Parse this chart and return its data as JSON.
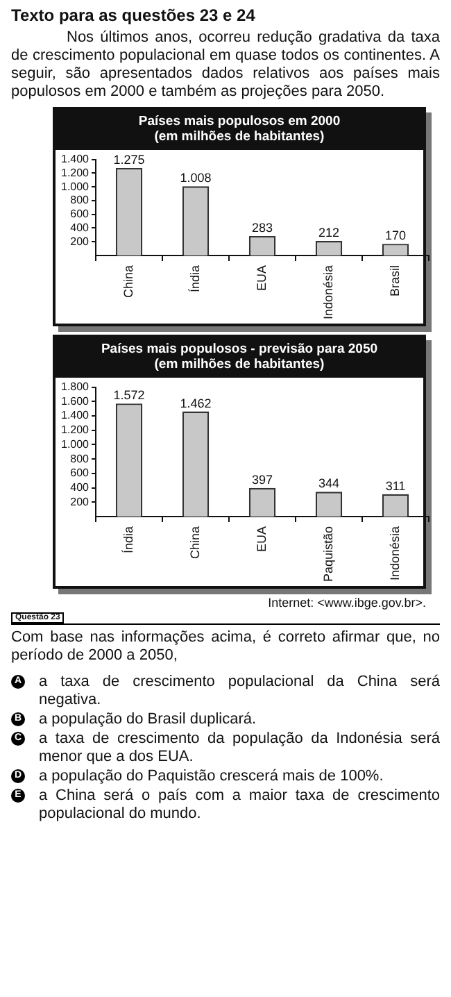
{
  "chart_data": [
    {
      "type": "bar",
      "title": "Países mais populosos em 2000",
      "subtitle": "(em milhões de habitantes)",
      "annotations": [
        "Texto para as questões 23 e 24",
        "Nos últimos anos, ocorreu redução gradativa da taxa de crescimento populacional em quase todos os continentes. A seguir, são apresentados dados relativos aos países mais populosos em 2000 e também as projeções para 2050."
      ],
      "categories": [
        "China",
        "Índia",
        "EUA",
        "Indonésia",
        "Brasil"
      ],
      "values": [
        1275,
        1008,
        283,
        212,
        170
      ],
      "value_labels": [
        "1.275",
        "1.008",
        "283",
        "212",
        "170"
      ],
      "color": "#c8c8c8",
      "ylim": [
        0,
        1400
      ],
      "yticks": [
        {
          "value": 200,
          "label": "200"
        },
        {
          "value": 400,
          "label": "400"
        },
        {
          "value": 600,
          "label": "600"
        },
        {
          "value": 800,
          "label": "800"
        },
        {
          "value": 1000,
          "label": "1.000"
        },
        {
          "value": 1200,
          "label": "1.200"
        },
        {
          "value": 1400,
          "label": "1.400"
        }
      ],
      "grid": false,
      "legend": false
    },
    {
      "type": "bar",
      "title": "Países mais populosos - previsão para 2050",
      "subtitle": "(em milhões de habitantes)",
      "annotations": [
        "Internet: <www.ibge.gov.br>.",
        "Questão 23",
        "Com base nas informações acima, é correto afirmar que, no período de 2000 a 2050,",
        "A a taxa de crescimento populacional da China será negativa.",
        "B a população do Brasil duplicará.",
        "C a taxa de crescimento da população da Indonésia será menor que a dos EUA.",
        "D a população do Paquistão crescerá mais de 100%.",
        "E a China será o país com a maior taxa de crescimento populacional do mundo."
      ],
      "categories": [
        "Índia",
        "China",
        "EUA",
        "Paquistão",
        "Indonésia"
      ],
      "values": [
        1572,
        1462,
        397,
        344,
        311
      ],
      "value_labels": [
        "1.572",
        "1.462",
        "397",
        "344",
        "311"
      ],
      "color": "#c8c8c8",
      "ylim": [
        0,
        1800
      ],
      "yticks": [
        {
          "value": 200,
          "label": "200"
        },
        {
          "value": 400,
          "label": "400"
        },
        {
          "value": 600,
          "label": "600"
        },
        {
          "value": 800,
          "label": "800"
        },
        {
          "value": 1000,
          "label": "1.000"
        },
        {
          "value": 1200,
          "label": "1.200"
        },
        {
          "value": 1400,
          "label": "1.400"
        },
        {
          "value": 1600,
          "label": "1.600"
        },
        {
          "value": 1800,
          "label": "1.800"
        }
      ],
      "grid": false,
      "legend": false
    }
  ]
}
